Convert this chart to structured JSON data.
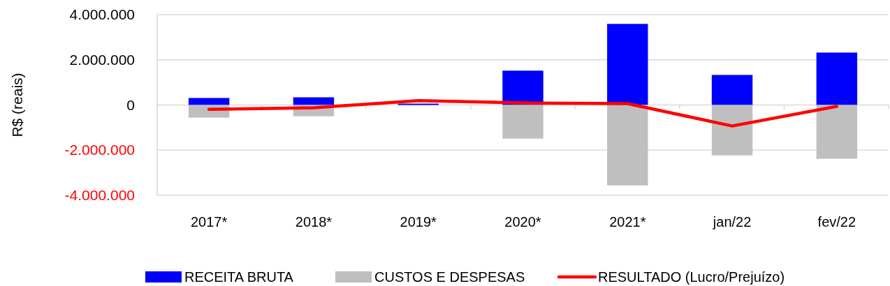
{
  "chart_data": {
    "type": "bar",
    "stacked": true,
    "ylabel": "R$ (reais)",
    "categories": [
      "2017*",
      "2018*",
      "2019*",
      "2020*",
      "2021*",
      "jan/22",
      "fev/22"
    ],
    "series": [
      {
        "name": "RECEITA BRUTA",
        "color": "#0000ff",
        "values": [
          310000,
          340000,
          60000,
          1520000,
          3590000,
          1330000,
          2320000
        ]
      },
      {
        "name": "CUSTOS E DESPESAS",
        "color": "#bfbfbf",
        "values": [
          -560000,
          -500000,
          null,
          -1490000,
          -3560000,
          -2230000,
          -2380000
        ]
      },
      {
        "name": "RESULTADO (Lucro/Prejuízo)",
        "type": "line",
        "color": "#ff0000",
        "values": [
          -190000,
          -120000,
          190000,
          90000,
          60000,
          -930000,
          -60000
        ]
      }
    ],
    "ylim": [
      -4000000,
      4000000
    ],
    "yticks": [
      {
        "value": -4000000,
        "label": "-4.000.000"
      },
      {
        "value": -2000000,
        "label": "-2.000.000"
      },
      0,
      {
        "value": 2000000,
        "label": "2.000.000"
      },
      {
        "value": 4000000,
        "label": "4.000.000"
      }
    ],
    "grid": "y",
    "legend": "bottom",
    "marker": "none",
    "line_style": "solid"
  }
}
